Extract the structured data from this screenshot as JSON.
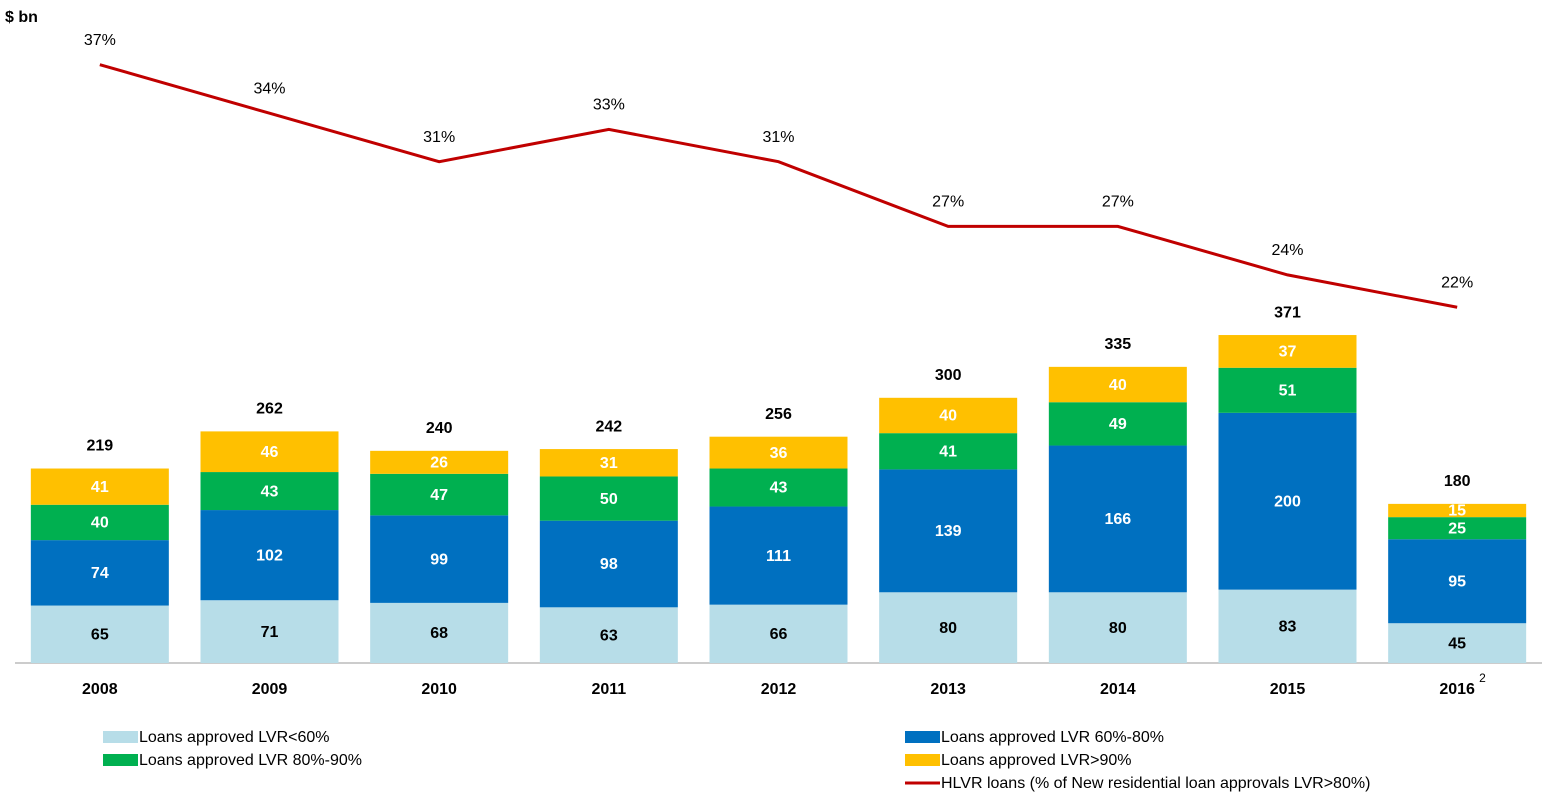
{
  "chart_data": {
    "type": "stacked_bar_line",
    "title": "$ bn",
    "categories": [
      "2008",
      "2009",
      "2010",
      "2011",
      "2012",
      "2013",
      "2014",
      "2015",
      "2016"
    ],
    "category_superscripts": [
      null,
      null,
      null,
      null,
      null,
      null,
      null,
      null,
      "2"
    ],
    "series": [
      {
        "name": "Loans approved LVR<60%",
        "color": "#b7dde8",
        "label_color": "#000000",
        "values": [
          65,
          71,
          68,
          63,
          66,
          80,
          80,
          83,
          45
        ]
      },
      {
        "name": "Loans approved LVR 60%-80%",
        "color": "#0070c0",
        "label_color": "#ffffff",
        "values": [
          74,
          102,
          99,
          98,
          111,
          139,
          166,
          200,
          95
        ]
      },
      {
        "name": "Loans approved LVR 80%-90%",
        "color": "#00b050",
        "label_color": "#ffffff",
        "values": [
          40,
          43,
          47,
          50,
          43,
          41,
          49,
          51,
          25
        ]
      },
      {
        "name": "Loans approved LVR>90%",
        "color": "#ffc000",
        "label_color": "#ffffff",
        "values": [
          41,
          46,
          26,
          31,
          36,
          40,
          40,
          37,
          15
        ]
      },
      {
        "name": "HLVR loans (% of New residential loan approvals LVR>80%)",
        "type": "line",
        "axis": "y2",
        "color": "#c00000",
        "values": [
          37,
          34,
          31,
          33,
          31,
          27,
          27,
          24,
          22
        ],
        "value_labels": [
          "37%",
          "34%",
          "31%",
          "33%",
          "31%",
          "27%",
          "27%",
          "24%",
          "22%"
        ]
      }
    ],
    "totals": [
      219,
      262,
      240,
      242,
      256,
      300,
      335,
      371,
      180
    ],
    "ylim": [
      0,
      750
    ],
    "y2lim": [
      0,
      41
    ],
    "grid": false,
    "legend": "bottom"
  }
}
